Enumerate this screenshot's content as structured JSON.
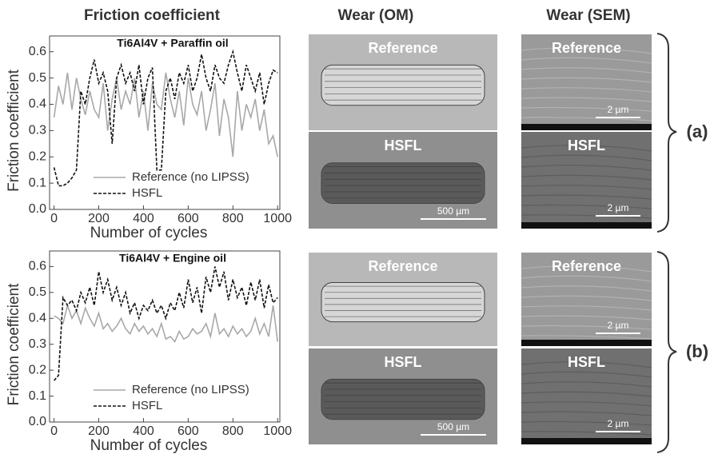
{
  "headers": [
    "Friction coefficient",
    "Wear (OM)",
    "Wear (SEM)"
  ],
  "chart_data": [
    {
      "type": "line",
      "title": "Ti6Al4V + Paraffin oil",
      "xlabel": "Number of cycles",
      "ylabel": "Friction coefficient",
      "x": [
        0,
        20,
        40,
        60,
        80,
        100,
        120,
        140,
        160,
        180,
        200,
        220,
        240,
        260,
        280,
        300,
        320,
        340,
        360,
        380,
        400,
        420,
        440,
        460,
        480,
        500,
        520,
        540,
        560,
        580,
        600,
        620,
        640,
        660,
        680,
        700,
        720,
        740,
        760,
        780,
        800,
        820,
        840,
        860,
        880,
        900,
        920,
        940,
        960,
        980,
        1000
      ],
      "series": [
        {
          "name": "Reference (no LIPSS)",
          "color": "#a8a8a8",
          "linestyle": "solid",
          "values": [
            0.35,
            0.47,
            0.4,
            0.52,
            0.38,
            0.5,
            0.42,
            0.36,
            0.45,
            0.38,
            0.35,
            0.48,
            0.3,
            0.42,
            0.5,
            0.38,
            0.45,
            0.4,
            0.5,
            0.35,
            0.45,
            0.3,
            0.48,
            0.4,
            0.38,
            0.52,
            0.42,
            0.35,
            0.45,
            0.32,
            0.5,
            0.4,
            0.36,
            0.45,
            0.3,
            0.38,
            0.48,
            0.28,
            0.42,
            0.35,
            0.2,
            0.45,
            0.3,
            0.4,
            0.35,
            0.42,
            0.3,
            0.38,
            0.25,
            0.28,
            0.2
          ]
        },
        {
          "name": "HSFL",
          "color": "#111111",
          "linestyle": "dashed",
          "values": [
            0.16,
            0.09,
            0.09,
            0.1,
            0.12,
            0.15,
            0.45,
            0.4,
            0.5,
            0.57,
            0.48,
            0.52,
            0.45,
            0.25,
            0.5,
            0.55,
            0.48,
            0.52,
            0.45,
            0.55,
            0.4,
            0.5,
            0.54,
            0.15,
            0.15,
            0.45,
            0.5,
            0.42,
            0.52,
            0.48,
            0.55,
            0.45,
            0.5,
            0.59,
            0.5,
            0.45,
            0.55,
            0.5,
            0.48,
            0.55,
            0.6,
            0.52,
            0.45,
            0.55,
            0.5,
            0.45,
            0.52,
            0.4,
            0.48,
            0.53,
            0.52
          ]
        }
      ],
      "xlim": [
        -20,
        1010
      ],
      "xticks": [
        0,
        200,
        400,
        600,
        800,
        1000
      ],
      "ylim": [
        0,
        0.66
      ],
      "yticks": [
        {
          "value": 0,
          "label": "0.0"
        },
        0.1,
        0.2,
        0.3,
        0.4,
        0.5,
        0.6
      ],
      "legend": "lower left"
    },
    {
      "type": "line",
      "title": "Ti6Al4V + Engine oil",
      "xlabel": "Number of cycles",
      "ylabel": "Friction coefficient",
      "x": [
        0,
        20,
        40,
        60,
        80,
        100,
        120,
        140,
        160,
        180,
        200,
        220,
        240,
        260,
        280,
        300,
        320,
        340,
        360,
        380,
        400,
        420,
        440,
        460,
        480,
        500,
        520,
        540,
        560,
        580,
        600,
        620,
        640,
        660,
        680,
        700,
        720,
        740,
        760,
        780,
        800,
        820,
        840,
        860,
        880,
        900,
        920,
        940,
        960,
        980,
        1000
      ],
      "series": [
        {
          "name": "Reference (no LIPSS)",
          "color": "#a8a8a8",
          "linestyle": "solid",
          "values": [
            0.41,
            0.4,
            0.38,
            0.45,
            0.4,
            0.43,
            0.38,
            0.44,
            0.4,
            0.37,
            0.42,
            0.36,
            0.38,
            0.35,
            0.37,
            0.4,
            0.36,
            0.34,
            0.38,
            0.35,
            0.37,
            0.34,
            0.36,
            0.33,
            0.38,
            0.32,
            0.33,
            0.31,
            0.35,
            0.32,
            0.33,
            0.36,
            0.34,
            0.35,
            0.38,
            0.33,
            0.42,
            0.34,
            0.36,
            0.33,
            0.37,
            0.34,
            0.36,
            0.33,
            0.35,
            0.4,
            0.34,
            0.38,
            0.33,
            0.45,
            0.31
          ]
        },
        {
          "name": "HSFL",
          "color": "#111111",
          "linestyle": "dashed",
          "values": [
            0.16,
            0.18,
            0.48,
            0.45,
            0.47,
            0.43,
            0.5,
            0.46,
            0.52,
            0.45,
            0.58,
            0.5,
            0.55,
            0.47,
            0.52,
            0.45,
            0.5,
            0.42,
            0.46,
            0.4,
            0.45,
            0.43,
            0.47,
            0.42,
            0.45,
            0.4,
            0.46,
            0.43,
            0.5,
            0.44,
            0.55,
            0.46,
            0.52,
            0.42,
            0.56,
            0.5,
            0.6,
            0.52,
            0.58,
            0.47,
            0.55,
            0.48,
            0.52,
            0.45,
            0.54,
            0.47,
            0.55,
            0.44,
            0.53,
            0.46,
            0.48
          ]
        }
      ],
      "xlim": [
        -20,
        1010
      ],
      "xticks": [
        0,
        200,
        400,
        600,
        800,
        1000
      ],
      "ylim": [
        0,
        0.66
      ],
      "yticks": [
        {
          "value": 0,
          "label": "0.0"
        },
        0.1,
        0.2,
        0.3,
        0.4,
        0.5,
        0.6
      ],
      "legend": "lower left"
    }
  ],
  "images": [
    {
      "label": "Reference"
    },
    {
      "label": "HSFL",
      "scale_bar": "500 µm"
    },
    {
      "label": "Reference",
      "scale_bar": "2 µm"
    },
    {
      "label": "HSFL",
      "scale_bar": "2 µm"
    },
    {
      "label": "Reference"
    },
    {
      "label": "HSFL",
      "scale_bar": "500 µm"
    },
    {
      "label": "Reference",
      "scale_bar": "2 µm"
    },
    {
      "label": "HSFL",
      "scale_bar": "2 µm"
    }
  ],
  "panel_labels": [
    "(a)",
    "(b)"
  ]
}
